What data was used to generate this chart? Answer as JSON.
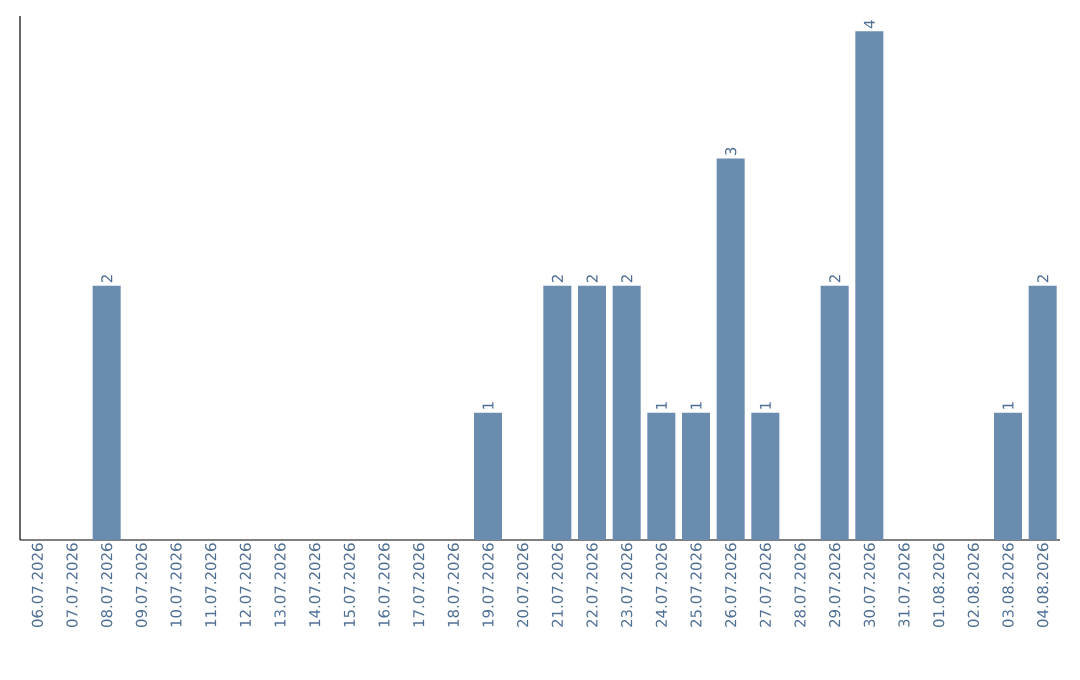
{
  "chart_data": {
    "type": "bar",
    "color": "#6a8caf",
    "categories": [
      "06.07.2026",
      "07.07.2026",
      "08.07.2026",
      "09.07.2026",
      "10.07.2026",
      "11.07.2026",
      "12.07.2026",
      "13.07.2026",
      "14.07.2026",
      "15.07.2026",
      "16.07.2026",
      "17.07.2026",
      "18.07.2026",
      "19.07.2026",
      "20.07.2026",
      "21.07.2026",
      "22.07.2026",
      "23.07.2026",
      "24.07.2026",
      "25.07.2026",
      "26.07.2026",
      "27.07.2026",
      "28.07.2026",
      "29.07.2026",
      "30.07.2026",
      "31.07.2026",
      "01.08.2026",
      "02.08.2026",
      "03.08.2026",
      "04.08.2026"
    ],
    "values": [
      0,
      0,
      2,
      0,
      0,
      0,
      0,
      0,
      0,
      0,
      0,
      0,
      0,
      1,
      0,
      2,
      2,
      2,
      1,
      1,
      3,
      1,
      0,
      2,
      4,
      0,
      0,
      0,
      1,
      2
    ],
    "value_labels": [
      null,
      null,
      "2",
      null,
      null,
      null,
      null,
      null,
      null,
      null,
      null,
      null,
      null,
      "1",
      null,
      "2",
      "2",
      "2",
      "1",
      "1",
      "3",
      "1",
      null,
      "2",
      "4",
      null,
      null,
      null,
      "1",
      "2"
    ],
    "tick_labels": "x"
  }
}
